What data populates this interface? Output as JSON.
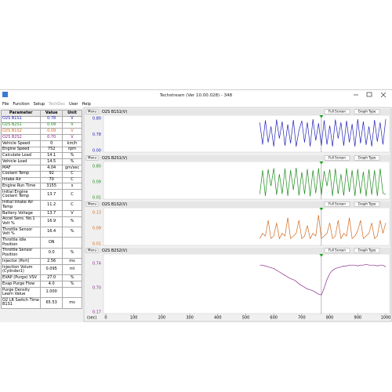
{
  "window": {
    "title": "Techstream (Ver 10.00.028) - 348",
    "menu": [
      "File",
      "Function",
      "Setup",
      "TechDoc",
      "User",
      "Help"
    ]
  },
  "table": {
    "header": [
      "Parameter",
      "Value",
      "Unit"
    ],
    "rows": [
      [
        "O2S B1S1",
        "0.78",
        "V"
      ],
      [
        "O2S B2S1",
        "0.09",
        "V"
      ],
      [
        "O2S B1S2",
        "0.09",
        "V"
      ],
      [
        "O2S B2S2",
        "0.70",
        "V"
      ],
      [
        "Vehicle Speed",
        "0",
        "km/h"
      ],
      [
        "Engine Speed",
        "752",
        "rpm"
      ],
      [
        "Calculate Load",
        "14.1",
        "%"
      ],
      [
        "Vehicle Load",
        "14.5",
        "%"
      ],
      [
        "MAF",
        "4.04",
        "gm/sec"
      ],
      [
        "Coolant Temp",
        "92",
        "C"
      ],
      [
        "Intake Air",
        "70",
        "C"
      ],
      [
        "Engine Run Time",
        "3155",
        "s"
      ],
      [
        "Initial Engine Coolant Temp",
        "13.7",
        "C"
      ],
      [
        "Initial Intake Air Temp",
        "11.2",
        "C"
      ],
      [
        "Battery Voltage",
        "13.7",
        "V"
      ],
      [
        "Accel Sens. No.1 Volt %",
        "16.9",
        "%"
      ],
      [
        "Throttle Sensor Volt %",
        "16.4",
        "%"
      ],
      [
        "Throttle Idle Position",
        "ON"
      ],
      [
        "Throttle Sensor Position",
        "0.0",
        "%"
      ],
      [
        "Injector (Port)",
        "2.56",
        "ms"
      ],
      [
        "Injection Volum (Cylinder1)",
        "0.095",
        "ml"
      ],
      [
        "EVAP (Purge) VSV",
        "27.0",
        "%"
      ],
      [
        "Evap Purge Flow",
        "4.0",
        "%"
      ],
      [
        "Purge Density Learn Value",
        "1.000"
      ],
      [
        "O2 LR Switch Time B1S1",
        "65.53",
        "ms"
      ]
    ]
  },
  "panel_buttons": {
    "menu": "Menu",
    "full_screen": "Full Screen",
    "graph_type": "Graph Type"
  },
  "time_axis": {
    "label": "(sec)",
    "xlim": [
      0,
      1000
    ],
    "xticks": [
      0,
      100,
      200,
      300,
      400,
      500,
      600,
      700,
      800,
      900,
      1000
    ],
    "x": [
      550,
      560,
      570,
      580,
      590,
      600,
      610,
      620,
      630,
      640,
      650,
      660,
      670,
      680,
      690,
      700,
      710,
      720,
      730,
      740,
      750,
      760,
      770,
      780,
      790,
      800,
      810,
      820,
      830,
      840,
      850,
      860,
      870,
      880,
      890,
      900,
      910,
      920,
      930,
      940,
      950,
      960,
      970,
      980,
      990,
      1000
    ],
    "cursor": 770
  },
  "chart_data": [
    {
      "type": "line",
      "title": "O2S B1S1(V)",
      "ymax": "0.80",
      "ycurrent": "0.78",
      "ymin": "0.00",
      "ylim": [
        0,
        0.8
      ],
      "series": [
        {
          "color": "#2222b8",
          "values": [
            0.7,
            0.15,
            0.75,
            0.2,
            0.6,
            0.1,
            0.77,
            0.3,
            0.72,
            0.12,
            0.65,
            0.18,
            0.76,
            0.1,
            0.5,
            0.74,
            0.2,
            0.7,
            0.1,
            0.78,
            0.25,
            0.68,
            0.12,
            0.75,
            0.15,
            0.62,
            0.1,
            0.77,
            0.3,
            0.7,
            0.12,
            0.74,
            0.2,
            0.66,
            0.1,
            0.78,
            0.18,
            0.72,
            0.14,
            0.6,
            0.1,
            0.76,
            0.22,
            0.7,
            0.15,
            0.78
          ]
        }
      ]
    },
    {
      "type": "line",
      "title": "O2S B2S1(V)",
      "ymax": "0.80",
      "ycurrent": "0.09",
      "ymin": "0.01",
      "ylim": [
        0.01,
        0.8
      ],
      "series": [
        {
          "color": "#1e8c1e",
          "values": [
            0.1,
            0.7,
            0.05,
            0.72,
            0.3,
            0.75,
            0.08,
            0.6,
            0.1,
            0.74,
            0.05,
            0.7,
            0.2,
            0.76,
            0.06,
            0.65,
            0.1,
            0.73,
            0.04,
            0.7,
            0.12,
            0.75,
            0.07,
            0.68,
            0.3,
            0.72,
            0.05,
            0.74,
            0.1,
            0.6,
            0.06,
            0.75,
            0.15,
            0.7,
            0.05,
            0.73,
            0.1,
            0.66,
            0.04,
            0.72,
            0.08,
            0.7,
            0.05,
            0.74,
            0.12,
            0.09
          ]
        }
      ]
    },
    {
      "type": "line",
      "title": "O2S B1S2(V)",
      "ymax": "0.13",
      "ycurrent": "0.09",
      "ymin": "0.01",
      "ylim": [
        0.01,
        0.13
      ],
      "series": [
        {
          "color": "#d2691e",
          "values": [
            0.03,
            0.05,
            0.04,
            0.1,
            0.03,
            0.04,
            0.09,
            0.03,
            0.05,
            0.04,
            0.11,
            0.03,
            0.04,
            0.05,
            0.1,
            0.03,
            0.04,
            0.08,
            0.03,
            0.05,
            0.04,
            0.12,
            0.03,
            0.04,
            0.05,
            0.09,
            0.03,
            0.04,
            0.1,
            0.03,
            0.05,
            0.04,
            0.11,
            0.03,
            0.04,
            0.06,
            0.1,
            0.03,
            0.04,
            0.05,
            0.09,
            0.03,
            0.04,
            0.1,
            0.05,
            0.09
          ]
        }
      ]
    },
    {
      "type": "line",
      "title": "O2S B2S2(V)",
      "ymax": "0.74",
      "ycurrent": "0.70",
      "ymin": "0.17",
      "ylim": [
        0.17,
        0.74
      ],
      "series": [
        {
          "color": "#8b2a8b",
          "values": [
            0.72,
            0.72,
            0.71,
            0.7,
            0.69,
            0.68,
            0.66,
            0.64,
            0.62,
            0.6,
            0.58,
            0.56,
            0.55,
            0.53,
            0.5,
            0.48,
            0.46,
            0.44,
            0.43,
            0.42,
            0.4,
            0.38,
            0.37,
            0.45,
            0.55,
            0.62,
            0.66,
            0.68,
            0.69,
            0.7,
            0.71,
            0.71,
            0.72,
            0.72,
            0.72,
            0.71,
            0.72,
            0.72,
            0.73,
            0.72,
            0.72,
            0.72,
            0.71,
            0.72,
            0.72,
            0.7
          ]
        }
      ]
    }
  ]
}
